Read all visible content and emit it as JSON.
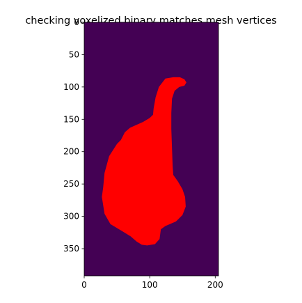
{
  "chart_data": {
    "type": "heatmap",
    "title": "checking voxelized binary matches mesh vertices",
    "xlabel": "",
    "ylabel": "",
    "xlim": [
      0,
      205
    ],
    "ylim": [
      392,
      0
    ],
    "x_ticks": [
      0,
      100,
      200
    ],
    "y_ticks": [
      0,
      50,
      100,
      150,
      200,
      250,
      300,
      350
    ],
    "x_tick_labels": [
      "0",
      "100",
      "200"
    ],
    "y_tick_labels": [
      "0",
      "50",
      "100",
      "150",
      "200",
      "250",
      "300",
      "350"
    ],
    "grid": false,
    "legend": "none",
    "background_color": "#440154",
    "region_color": "#ff0000",
    "region": {
      "name": "",
      "outline": [
        [
          124,
          87
        ],
        [
          136,
          85
        ],
        [
          146,
          85
        ],
        [
          153,
          88
        ],
        [
          156,
          93
        ],
        [
          153,
          98
        ],
        [
          145,
          100
        ],
        [
          138,
          106
        ],
        [
          134,
          118
        ],
        [
          133,
          140
        ],
        [
          133,
          165
        ],
        [
          134,
          195
        ],
        [
          135,
          222
        ],
        [
          136,
          236
        ],
        [
          143,
          246
        ],
        [
          150,
          258
        ],
        [
          154,
          270
        ],
        [
          155,
          285
        ],
        [
          150,
          298
        ],
        [
          140,
          308
        ],
        [
          124,
          315
        ],
        [
          117,
          320
        ],
        [
          115,
          335
        ],
        [
          108,
          343
        ],
        [
          96,
          345
        ],
        [
          88,
          344
        ],
        [
          80,
          339
        ],
        [
          71,
          331
        ],
        [
          58,
          323
        ],
        [
          40,
          312
        ],
        [
          31,
          296
        ],
        [
          27,
          270
        ],
        [
          29,
          255
        ],
        [
          31,
          233
        ],
        [
          38,
          207
        ],
        [
          50,
          188
        ],
        [
          56,
          182
        ],
        [
          62,
          170
        ],
        [
          70,
          163
        ],
        [
          90,
          154
        ],
        [
          100,
          148
        ],
        [
          105,
          143
        ],
        [
          106,
          133
        ],
        [
          109,
          116
        ],
        [
          114,
          100
        ]
      ]
    }
  }
}
